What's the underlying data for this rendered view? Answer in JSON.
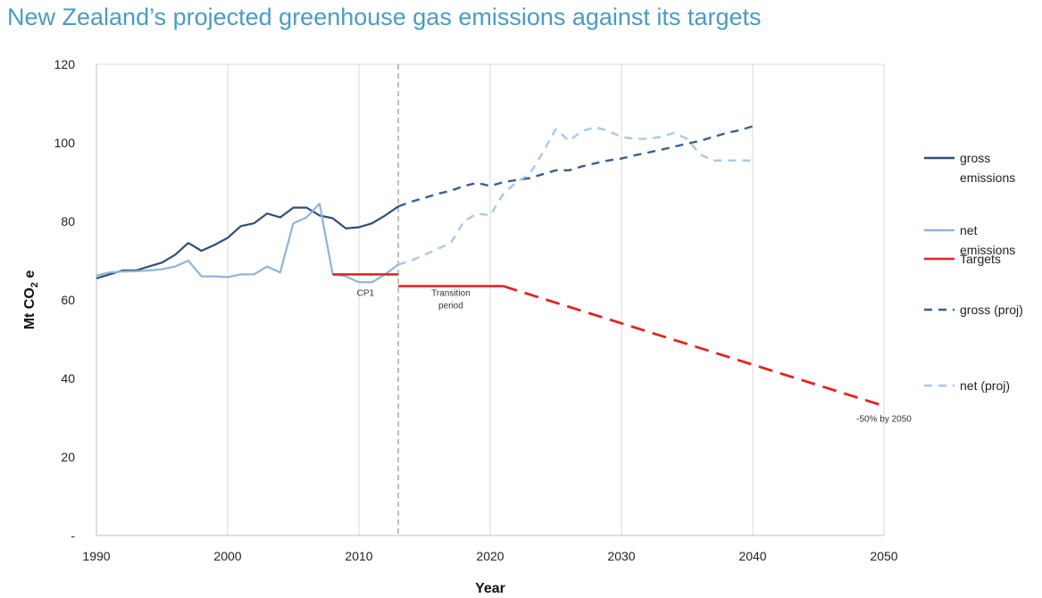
{
  "title": "New Zealand’s projected greenhouse gas emissions against its targets",
  "colors": {
    "title": "#4a9bc4",
    "gross": "#2f4e78",
    "net": "#8fb4dc",
    "gross_proj": "#3a5f8f",
    "net_proj": "#aac8ea",
    "targets": "#e02424",
    "grid": "#d9d9d9",
    "divider": "#aaaaaa"
  },
  "chart_data": {
    "type": "line",
    "xlabel": "Year",
    "ylabel_main": "Mt CO",
    "ylabel_sub": "2",
    "ylabel_tail": " e",
    "xlim": [
      1990,
      2050
    ],
    "ylim": [
      0,
      120
    ],
    "x_ticks": [
      "1990",
      "2000",
      "2010",
      "2020",
      "2030",
      "2040",
      "2050"
    ],
    "y_ticks": [
      {
        "value": 0,
        "label": "-"
      },
      {
        "value": 20,
        "label": "20"
      },
      {
        "value": 40,
        "label": "40"
      },
      {
        "value": 60,
        "label": "60"
      },
      {
        "value": 80,
        "label": "80"
      },
      {
        "value": 100,
        "label": "100"
      },
      {
        "value": 120,
        "label": "120"
      }
    ],
    "grid": "vertical",
    "legend_position": "right",
    "divider_year": 2013,
    "series": [
      {
        "name": "gross emissions",
        "style": "solid",
        "color_key": "gross",
        "x": [
          1990,
          1991,
          1992,
          1993,
          1994,
          1995,
          1996,
          1997,
          1998,
          1999,
          2000,
          2001,
          2002,
          2003,
          2004,
          2005,
          2006,
          2007,
          2008,
          2009,
          2010,
          2011,
          2012,
          2013
        ],
        "y": [
          65.5,
          66.5,
          67.5,
          67.5,
          68.5,
          69.5,
          71.5,
          74.5,
          72.5,
          74,
          75.8,
          78.8,
          79.5,
          82,
          81,
          83.5,
          83.5,
          81.5,
          80.8,
          78.2,
          78.5,
          79.5,
          81.5,
          83.8
        ]
      },
      {
        "name": "net emissions",
        "style": "solid",
        "color_key": "net",
        "x": [
          1990,
          1991,
          1992,
          1993,
          1994,
          1995,
          1996,
          1997,
          1998,
          1999,
          2000,
          2001,
          2002,
          2003,
          2004,
          2005,
          2006,
          2007,
          2008,
          2009,
          2010,
          2011,
          2012,
          2013
        ],
        "y": [
          66.2,
          67,
          67.2,
          67.3,
          67.5,
          67.8,
          68.5,
          70,
          66,
          66,
          65.8,
          66.5,
          66.5,
          68.5,
          67,
          79.5,
          81,
          84.5,
          66.5,
          66,
          64.5,
          64.5,
          66.5,
          69
        ]
      },
      {
        "name": "Targets",
        "style": "solid",
        "color_key": "targets",
        "segments": [
          {
            "x": [
              2008,
              2013
            ],
            "y": [
              66.5,
              66.5
            ]
          },
          {
            "x": [
              2013,
              2021
            ],
            "y": [
              63.5,
              63.5
            ]
          }
        ]
      },
      {
        "name": "gross (proj)",
        "style": "dashed",
        "color_key": "gross_proj",
        "x": [
          2013,
          2014,
          2015,
          2016,
          2017,
          2018,
          2019,
          2020,
          2021,
          2022,
          2023,
          2024,
          2025,
          2026,
          2027,
          2028,
          2029,
          2030,
          2031,
          2032,
          2033,
          2034,
          2035,
          2036,
          2037,
          2038,
          2039,
          2040
        ],
        "y": [
          83.8,
          85,
          86,
          87,
          87.8,
          89,
          89.8,
          89,
          90,
          90.5,
          91,
          92,
          93,
          93,
          94,
          94.8,
          95.5,
          96,
          96.8,
          97.5,
          98.2,
          99,
          99.8,
          100.5,
          101.5,
          102.5,
          103.2,
          104.2
        ]
      },
      {
        "name": "net (proj)",
        "style": "dashed",
        "color_key": "net_proj",
        "x": [
          2013,
          2014,
          2015,
          2016,
          2017,
          2018,
          2019,
          2020,
          2021,
          2022,
          2023,
          2024,
          2025,
          2026,
          2027,
          2028,
          2029,
          2030,
          2031,
          2032,
          2033,
          2034,
          2035,
          2036,
          2037,
          2038,
          2039,
          2040
        ],
        "y": [
          69,
          70,
          71.5,
          73,
          74.5,
          80,
          82,
          81.5,
          87,
          90,
          92,
          97.5,
          103.5,
          100.5,
          103,
          104,
          103,
          101.5,
          101,
          101,
          101.5,
          102.5,
          101,
          97,
          95.5,
          95.5,
          95.5,
          95.5
        ]
      },
      {
        "name": "",
        "style": "dashed",
        "color_key": "targets",
        "x": [
          2021,
          2050
        ],
        "y": [
          63.5,
          33
        ]
      }
    ],
    "annotations": [
      {
        "text": "CP1",
        "x": 2010.5,
        "y": 61
      },
      {
        "text_lines": [
          "Transition",
          "period"
        ],
        "x": 2017,
        "y": 61
      },
      {
        "text": "-50% by 2050",
        "x": 2050,
        "y": 29
      }
    ]
  },
  "legend": [
    {
      "lines": [
        "gross",
        "emissions"
      ],
      "color_key": "gross",
      "style": "solid"
    },
    {
      "lines": [
        "net",
        "emissions"
      ],
      "color_key": "net",
      "style": "solid"
    },
    {
      "lines": [
        "Targets"
      ],
      "color_key": "targets",
      "style": "solid"
    },
    {
      "lines": [
        "gross (proj)"
      ],
      "color_key": "gross_proj",
      "style": "dashed"
    },
    {
      "lines": [
        "net (proj)"
      ],
      "color_key": "net_proj",
      "style": "dashed"
    }
  ]
}
